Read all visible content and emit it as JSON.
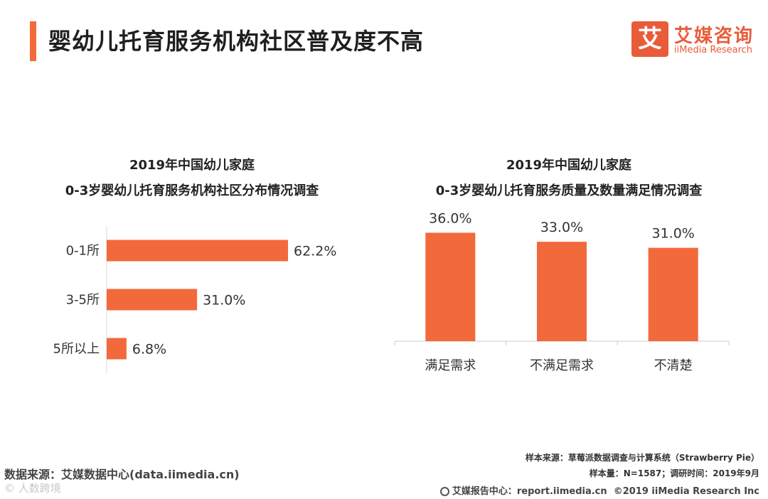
{
  "header": {
    "title": "婴幼儿托育服务机构社区普及度不高",
    "logo_icon": "艾",
    "logo_cn": "艾媒咨询",
    "logo_en": "iiMedia Research"
  },
  "colors": {
    "accent": "#f26c3a",
    "bar": "#f2693b"
  },
  "chart_data": [
    {
      "type": "bar",
      "orientation": "horizontal",
      "title_line1": "2019年中国幼儿家庭",
      "title_line2": "0-3岁婴幼儿托育服务机构社区分布情况调查",
      "categories": [
        "0-1所",
        "3-5所",
        "5所以上"
      ],
      "values": [
        62.2,
        31.0,
        6.8
      ],
      "value_labels": [
        "62.2%",
        "31.0%",
        "6.8%"
      ],
      "xlim": [
        0,
        100
      ]
    },
    {
      "type": "bar",
      "orientation": "vertical",
      "title_line1": "2019年中国幼儿家庭",
      "title_line2": "0-3岁婴幼儿托育服务质量及数量满足情况调查",
      "categories": [
        "满足需求",
        "不满足需求",
        "不清楚"
      ],
      "values": [
        36.0,
        33.0,
        31.0
      ],
      "value_labels": [
        "36.0%",
        "33.0%",
        "31.0%"
      ],
      "ylim": [
        0,
        42
      ]
    }
  ],
  "footer": {
    "source_left": "数据来源：艾媒数据中心(data.iimedia.cn)",
    "watermark": "© 人数跨境",
    "sample_source": "样本来源：草莓派数据调查与计算系统（Strawberry Pie）",
    "sample_size": "样本量：N=1587；调研时间：2019年9月",
    "report_center": "艾媒报告中心：report.iimedia.cn",
    "copyright": "©2019  iiMedia Research  Inc"
  }
}
